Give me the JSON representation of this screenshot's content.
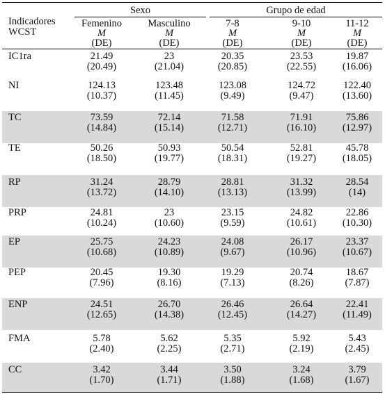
{
  "header": {
    "col1_line1": "Indicadores",
    "col1_line2": "WCST",
    "group_sexo": "Sexo",
    "group_edad": "Grupo de edad",
    "columns": [
      "Femenino",
      "Masculino",
      "7-8",
      "9-10",
      "11-12"
    ],
    "stat_mean": "M",
    "stat_sd": "(DE)"
  },
  "rows": [
    {
      "label": "IC1ra",
      "shaded": false,
      "means": [
        "21.49",
        "23",
        "20.35",
        "23.53",
        "19.87"
      ],
      "sds": [
        "(20.49)",
        "(21.04)",
        "(20.85)",
        "(22.55)",
        "(16.06)"
      ]
    },
    {
      "label": "NI",
      "shaded": false,
      "means": [
        "124.13",
        "123.48",
        "123.08",
        "124.72",
        "122.40"
      ],
      "sds": [
        "(10.37)",
        "(11.45)",
        "(9.49)",
        "(9.47)",
        "(13.60)"
      ]
    },
    {
      "label": "TC",
      "shaded": true,
      "means": [
        "73.59",
        "72.14",
        "71.58",
        "71.91",
        "75.86"
      ],
      "sds": [
        "(14.84)",
        "(15.14)",
        "(12.71)",
        "(16.10)",
        "(12.97)"
      ]
    },
    {
      "label": "TE",
      "shaded": false,
      "means": [
        "50.26",
        "50.93",
        "50.54",
        "52.81",
        "45.78"
      ],
      "sds": [
        "(18.50)",
        "(19.77)",
        "(18.31)",
        "(19.27)",
        "(18.05)"
      ]
    },
    {
      "label": "RP",
      "shaded": true,
      "means": [
        "31.24",
        "28.79",
        "28.81",
        "31.32",
        "28.54"
      ],
      "sds": [
        "(13.72)",
        "(14.10)",
        "(13.13)",
        "(13.99)",
        "(14)"
      ]
    },
    {
      "label": "PRP",
      "shaded": false,
      "means": [
        "24.81",
        "23",
        "23.15",
        "24.82",
        "22.86"
      ],
      "sds": [
        "(10.24)",
        "(10.60)",
        "(9.59)",
        "(10.61)",
        "(10.30)"
      ]
    },
    {
      "label": "EP",
      "shaded": true,
      "means": [
        "25.75",
        "24.23",
        "24.08",
        "26.17",
        "23.37"
      ],
      "sds": [
        "(10.68)",
        "(10.89)",
        "(9.67)",
        "(10.96)",
        "(10.67)"
      ]
    },
    {
      "label": "PEP",
      "shaded": false,
      "means": [
        "20.45",
        "19.30",
        "19.29",
        "20.74",
        "18.67"
      ],
      "sds": [
        "(7.96)",
        "(8.16)",
        "(7.13)",
        "(8.26)",
        "(7.87)"
      ]
    },
    {
      "label": "ENP",
      "shaded": true,
      "means": [
        "24.51",
        "26.70",
        "26.46",
        "26.64",
        "22.41"
      ],
      "sds": [
        "(12.65)",
        "(14.38)",
        "(12.45)",
        "(14.27)",
        "(11.49)"
      ]
    },
    {
      "label": "FMA",
      "shaded": false,
      "means": [
        "5.78",
        "5.62",
        "5.35",
        "5.92",
        "5.43"
      ],
      "sds": [
        "(2.40)",
        "(2.25)",
        "(2.71)",
        "(2.19)",
        "(2.45)"
      ]
    },
    {
      "label": "CC",
      "shaded": true,
      "means": [
        "3.42",
        "3.44",
        "3.50",
        "3.24",
        "3.79"
      ],
      "sds": [
        "(1.70)",
        "(1.71)",
        "(1.88)",
        "(1.68)",
        "(1.67)"
      ]
    }
  ]
}
